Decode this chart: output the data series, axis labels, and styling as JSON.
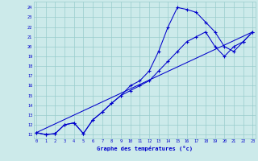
{
  "xlabel": "Graphe des températures (°c)",
  "bg_color": "#cceaea",
  "grid_color": "#99cccc",
  "line_color": "#0000cc",
  "xticks": [
    0,
    1,
    2,
    3,
    4,
    5,
    6,
    7,
    8,
    9,
    10,
    11,
    12,
    13,
    14,
    15,
    16,
    17,
    18,
    19,
    20,
    21,
    22,
    23
  ],
  "yticks": [
    11,
    12,
    13,
    14,
    15,
    16,
    17,
    18,
    19,
    20,
    21,
    22,
    23,
    24
  ],
  "xlim": [
    -0.3,
    23.3
  ],
  "ylim": [
    10.6,
    24.6
  ],
  "line1_x": [
    0,
    1,
    2,
    3,
    4,
    5,
    6,
    7,
    8,
    9,
    10,
    11,
    12,
    13,
    14,
    15,
    16,
    17,
    18,
    19,
    20,
    21,
    22,
    23
  ],
  "line1_y": [
    11.2,
    11.0,
    11.1,
    12.0,
    12.2,
    11.1,
    12.5,
    13.3,
    14.2,
    15.0,
    15.5,
    16.0,
    16.5,
    17.5,
    18.5,
    19.5,
    20.5,
    21.0,
    21.5,
    20.0,
    19.0,
    20.0,
    20.5,
    21.5
  ],
  "line2_x": [
    0,
    1,
    2,
    3,
    4,
    5,
    6,
    7,
    8,
    9,
    10,
    11,
    12,
    13,
    14,
    15,
    16,
    17,
    18,
    19,
    20,
    21,
    22,
    23
  ],
  "line2_y": [
    11.2,
    11.0,
    11.1,
    12.0,
    12.2,
    11.1,
    12.5,
    13.3,
    14.2,
    15.0,
    16.0,
    16.5,
    17.5,
    19.5,
    22.0,
    24.0,
    23.8,
    23.5,
    22.5,
    21.5,
    20.0,
    19.5,
    20.5,
    21.5
  ],
  "line3_x": [
    0,
    23
  ],
  "line3_y": [
    11.2,
    21.5
  ]
}
